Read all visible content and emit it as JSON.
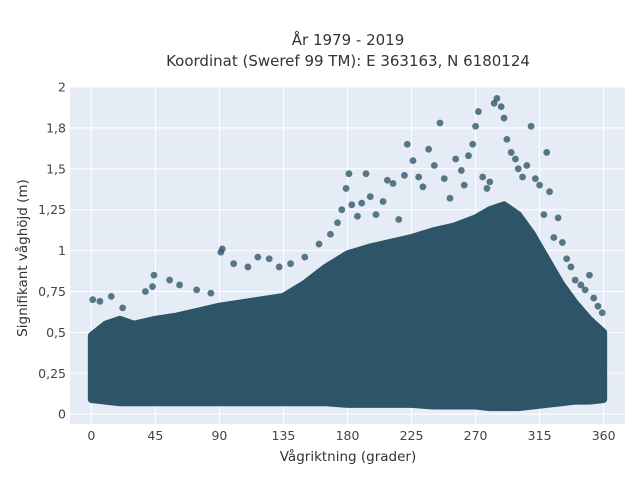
{
  "chart_data": {
    "type": "scatter",
    "title_line1": "År 1979 - 2019",
    "title_line2": "Koordinat (Sweref 99 TM): E 363163, N 6180124",
    "xlabel": "Vågriktning (grader)",
    "ylabel": "Signifikant våghöjd (m)",
    "xlim": [
      -15,
      375
    ],
    "ylim": [
      -0.06,
      2.0
    ],
    "x_ticks": [
      0,
      45,
      90,
      135,
      180,
      225,
      270,
      315,
      360
    ],
    "x_tick_labels": [
      "0",
      "45",
      "90",
      "135",
      "180",
      "225",
      "270",
      "315",
      "360"
    ],
    "y_ticks": [
      0,
      0.25,
      0.5,
      0.75,
      1.0,
      1.25,
      1.5,
      1.75,
      2.0
    ],
    "y_tick_labels": [
      "0",
      "0,25",
      "0,5",
      "0,75",
      "1",
      "1,25",
      "1,5",
      "1,8",
      "2"
    ],
    "grid": true,
    "marker_color": "#2e5468",
    "plot_background": "#e5ecf6",
    "envelope": {
      "x": [
        0,
        10,
        20,
        30,
        45,
        60,
        75,
        90,
        105,
        120,
        135,
        150,
        165,
        180,
        195,
        210,
        225,
        240,
        255,
        270,
        280,
        290,
        300,
        310,
        320,
        330,
        340,
        350,
        360
      ],
      "lower": [
        0.09,
        0.08,
        0.07,
        0.07,
        0.07,
        0.07,
        0.07,
        0.07,
        0.07,
        0.07,
        0.07,
        0.07,
        0.07,
        0.06,
        0.06,
        0.06,
        0.06,
        0.05,
        0.05,
        0.05,
        0.04,
        0.04,
        0.04,
        0.05,
        0.06,
        0.07,
        0.08,
        0.08,
        0.09
      ],
      "upper": [
        0.48,
        0.55,
        0.58,
        0.55,
        0.58,
        0.6,
        0.63,
        0.66,
        0.68,
        0.7,
        0.72,
        0.8,
        0.9,
        0.98,
        1.02,
        1.05,
        1.08,
        1.12,
        1.15,
        1.2,
        1.25,
        1.28,
        1.22,
        1.1,
        0.95,
        0.8,
        0.68,
        0.58,
        0.5
      ]
    },
    "outliers": [
      {
        "x": 1,
        "y": 0.7
      },
      {
        "x": 6,
        "y": 0.69
      },
      {
        "x": 14,
        "y": 0.72
      },
      {
        "x": 22,
        "y": 0.65
      },
      {
        "x": 38,
        "y": 0.75
      },
      {
        "x": 43,
        "y": 0.78
      },
      {
        "x": 44,
        "y": 0.85
      },
      {
        "x": 55,
        "y": 0.82
      },
      {
        "x": 62,
        "y": 0.79
      },
      {
        "x": 74,
        "y": 0.76
      },
      {
        "x": 84,
        "y": 0.74
      },
      {
        "x": 91,
        "y": 0.99
      },
      {
        "x": 92,
        "y": 1.01
      },
      {
        "x": 100,
        "y": 0.92
      },
      {
        "x": 110,
        "y": 0.9
      },
      {
        "x": 117,
        "y": 0.96
      },
      {
        "x": 125,
        "y": 0.95
      },
      {
        "x": 132,
        "y": 0.9
      },
      {
        "x": 140,
        "y": 0.92
      },
      {
        "x": 150,
        "y": 0.96
      },
      {
        "x": 160,
        "y": 1.04
      },
      {
        "x": 168,
        "y": 1.1
      },
      {
        "x": 173,
        "y": 1.17
      },
      {
        "x": 176,
        "y": 1.25
      },
      {
        "x": 179,
        "y": 1.38
      },
      {
        "x": 181,
        "y": 1.47
      },
      {
        "x": 183,
        "y": 1.28
      },
      {
        "x": 187,
        "y": 1.21
      },
      {
        "x": 190,
        "y": 1.29
      },
      {
        "x": 193,
        "y": 1.47
      },
      {
        "x": 196,
        "y": 1.33
      },
      {
        "x": 200,
        "y": 1.22
      },
      {
        "x": 205,
        "y": 1.3
      },
      {
        "x": 208,
        "y": 1.43
      },
      {
        "x": 212,
        "y": 1.41
      },
      {
        "x": 216,
        "y": 1.19
      },
      {
        "x": 220,
        "y": 1.46
      },
      {
        "x": 222,
        "y": 1.65
      },
      {
        "x": 226,
        "y": 1.55
      },
      {
        "x": 230,
        "y": 1.45
      },
      {
        "x": 233,
        "y": 1.39
      },
      {
        "x": 237,
        "y": 1.62
      },
      {
        "x": 241,
        "y": 1.52
      },
      {
        "x": 245,
        "y": 1.78
      },
      {
        "x": 248,
        "y": 1.44
      },
      {
        "x": 252,
        "y": 1.32
      },
      {
        "x": 256,
        "y": 1.56
      },
      {
        "x": 260,
        "y": 1.49
      },
      {
        "x": 262,
        "y": 1.4
      },
      {
        "x": 265,
        "y": 1.58
      },
      {
        "x": 268,
        "y": 1.65
      },
      {
        "x": 270,
        "y": 1.76
      },
      {
        "x": 272,
        "y": 1.85
      },
      {
        "x": 275,
        "y": 1.45
      },
      {
        "x": 278,
        "y": 1.38
      },
      {
        "x": 280,
        "y": 1.42
      },
      {
        "x": 283,
        "y": 1.9
      },
      {
        "x": 285,
        "y": 1.93
      },
      {
        "x": 288,
        "y": 1.88
      },
      {
        "x": 290,
        "y": 1.81
      },
      {
        "x": 292,
        "y": 1.68
      },
      {
        "x": 295,
        "y": 1.6
      },
      {
        "x": 298,
        "y": 1.56
      },
      {
        "x": 300,
        "y": 1.5
      },
      {
        "x": 303,
        "y": 1.45
      },
      {
        "x": 306,
        "y": 1.52
      },
      {
        "x": 309,
        "y": 1.76
      },
      {
        "x": 312,
        "y": 1.44
      },
      {
        "x": 315,
        "y": 1.4
      },
      {
        "x": 318,
        "y": 1.22
      },
      {
        "x": 320,
        "y": 1.6
      },
      {
        "x": 322,
        "y": 1.36
      },
      {
        "x": 325,
        "y": 1.08
      },
      {
        "x": 328,
        "y": 1.2
      },
      {
        "x": 331,
        "y": 1.05
      },
      {
        "x": 334,
        "y": 0.95
      },
      {
        "x": 337,
        "y": 0.9
      },
      {
        "x": 340,
        "y": 0.82
      },
      {
        "x": 344,
        "y": 0.79
      },
      {
        "x": 347,
        "y": 0.76
      },
      {
        "x": 350,
        "y": 0.85
      },
      {
        "x": 353,
        "y": 0.71
      },
      {
        "x": 356,
        "y": 0.66
      },
      {
        "x": 359,
        "y": 0.62
      }
    ]
  }
}
